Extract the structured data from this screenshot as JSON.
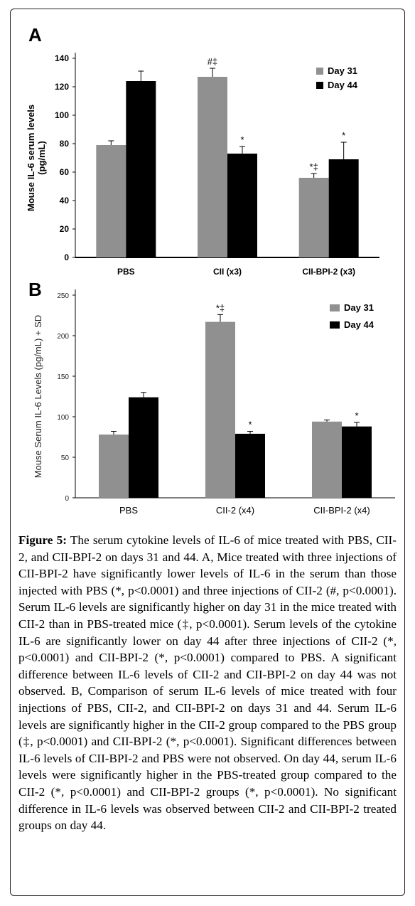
{
  "panels": {
    "a": {
      "letter": "A"
    },
    "b": {
      "letter": "B"
    }
  },
  "colors": {
    "day31": "#909090",
    "day44": "#000000",
    "axis": "#000000"
  },
  "chart_data": [
    {
      "type": "bar",
      "panel": "A",
      "categories": [
        "PBS",
        "CII (x3)",
        "CII-BPI-2 (x3)"
      ],
      "series": [
        {
          "name": "Day 31",
          "values": [
            79,
            127,
            56
          ],
          "errors": [
            3,
            6,
            3
          ],
          "annotations": [
            "",
            "#‡",
            "*‡"
          ]
        },
        {
          "name": "Day 44",
          "values": [
            124,
            73,
            69
          ],
          "errors": [
            7,
            5,
            12
          ],
          "annotations": [
            "",
            "*",
            "*"
          ]
        }
      ],
      "ylabel": "Mouse IL-6 serum levels (pg/mL)",
      "ylabel_lines": [
        "Mouse IL-6 serum levels",
        "(pg/mL)"
      ],
      "ylim": [
        0,
        140
      ],
      "yticks": [
        0,
        20,
        40,
        60,
        80,
        100,
        120,
        140
      ],
      "legend": "top-right"
    },
    {
      "type": "bar",
      "panel": "B",
      "categories": [
        "PBS",
        "CII-2 (x4)",
        "CII-BPI-2 (x4)"
      ],
      "series": [
        {
          "name": "Day 31",
          "values": [
            78,
            217,
            94
          ],
          "errors": [
            4,
            9,
            2
          ],
          "annotations": [
            "",
            "*‡",
            ""
          ]
        },
        {
          "name": "Day 44",
          "values": [
            124,
            79,
            88
          ],
          "errors": [
            6,
            3,
            5
          ],
          "annotations": [
            "",
            "*",
            "*"
          ]
        }
      ],
      "ylabel": "Mouse Serum IL-6 Levels (pg/mL) + SD",
      "ylim": [
        0,
        250
      ],
      "yticks": [
        0,
        50,
        100,
        150,
        200,
        250
      ],
      "legend": "top-right"
    }
  ],
  "caption": {
    "label": "Figure 5:",
    "text": " The serum cytokine levels of IL-6 of mice treated with PBS, CII-2, and CII-BPI-2 on days 31 and 44. A, Mice treated with three injections of CII-BPI-2 have significantly lower levels of IL-6 in the serum than those injected with PBS (*, p<0.0001) and three injections of CII-2 (#, p<0.0001). Serum IL-6 levels are significantly higher on day 31 in the mice treated with CII-2 than in PBS-treated mice (‡, p<0.0001). Serum levels of the cytokine IL-6 are significantly lower on day 44 after three injections of CII-2 (*, p<0.0001) and CII-BPI-2 (*, p<0.0001) compared to PBS. A significant difference between IL-6 levels of CII-2 and CII-BPI-2 on day 44 was not observed. B, Comparison of serum IL-6 levels of mice treated with four injections of PBS, CII-2, and CII-BPI-2 on days 31 and 44. Serum IL-6 levels are significantly higher in the CII-2 group compared to the PBS group (‡, p<0.0001) and CII-BPI-2 (*, p<0.0001). Significant differences between IL-6 levels of CII-BPI-2 and PBS were not observed. On day 44, serum IL-6 levels were significantly higher in the PBS-treated group compared to the CII-2 (*, p<0.0001) and CII-BPI-2 groups (*, p<0.0001). No significant difference in IL-6 levels was observed between CII-2 and CII-BPI-2 treated groups on day 44."
  }
}
